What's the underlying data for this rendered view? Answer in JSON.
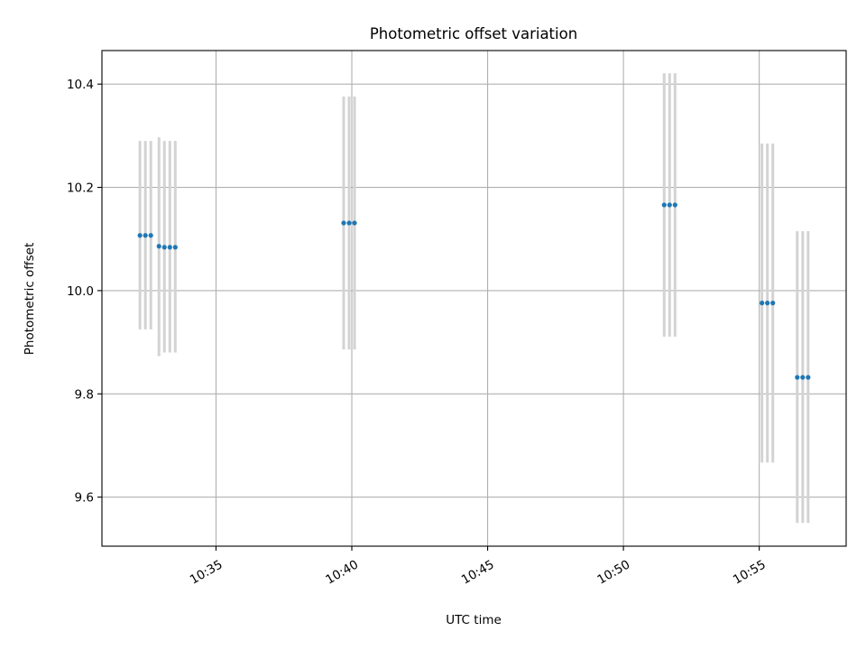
{
  "chart_data": {
    "type": "scatter",
    "title": "Photometric offset variation",
    "xlabel": "UTC time",
    "ylabel": "Photometric offset",
    "x_is_time": true,
    "xlim": [
      "10:30:48",
      "10:58:12"
    ],
    "ylim": [
      9.505,
      10.465
    ],
    "x_ticks": [
      "10:35",
      "10:40",
      "10:45",
      "10:50",
      "10:55"
    ],
    "y_ticks": [
      "9.6",
      "9.8",
      "10.0",
      "10.2",
      "10.4"
    ],
    "y_tick_values": [
      9.6,
      9.8,
      10.0,
      10.2,
      10.4
    ],
    "grid": true,
    "marker_color": "#1f77b4",
    "errorbar_color": "#d3d3d3",
    "series": [
      {
        "x": [
          "10:32:12",
          "10:32:24",
          "10:32:36",
          "10:32:54",
          "10:33:06",
          "10:33:18",
          "10:33:30",
          "10:39:42",
          "10:39:54",
          "10:40:06",
          "10:51:30",
          "10:51:42",
          "10:51:54",
          "10:55:06",
          "10:55:18",
          "10:55:30",
          "10:56:24",
          "10:56:36",
          "10:56:48"
        ],
        "y": [
          10.107,
          10.107,
          10.107,
          10.086,
          10.084,
          10.084,
          10.084,
          10.131,
          10.131,
          10.131,
          10.166,
          10.166,
          10.166,
          9.976,
          9.976,
          9.976,
          9.832,
          9.832,
          9.832
        ],
        "yerr_low": [
          9.925,
          9.925,
          9.925,
          9.873,
          9.88,
          9.88,
          9.88,
          9.886,
          9.886,
          9.886,
          9.911,
          9.911,
          9.911,
          9.667,
          9.667,
          9.667,
          9.55,
          9.55,
          9.55
        ],
        "yerr_high": [
          10.29,
          10.29,
          10.29,
          10.297,
          10.29,
          10.29,
          10.29,
          10.376,
          10.376,
          10.376,
          10.421,
          10.421,
          10.421,
          10.285,
          10.285,
          10.285,
          10.115,
          10.115,
          10.115
        ]
      }
    ]
  }
}
